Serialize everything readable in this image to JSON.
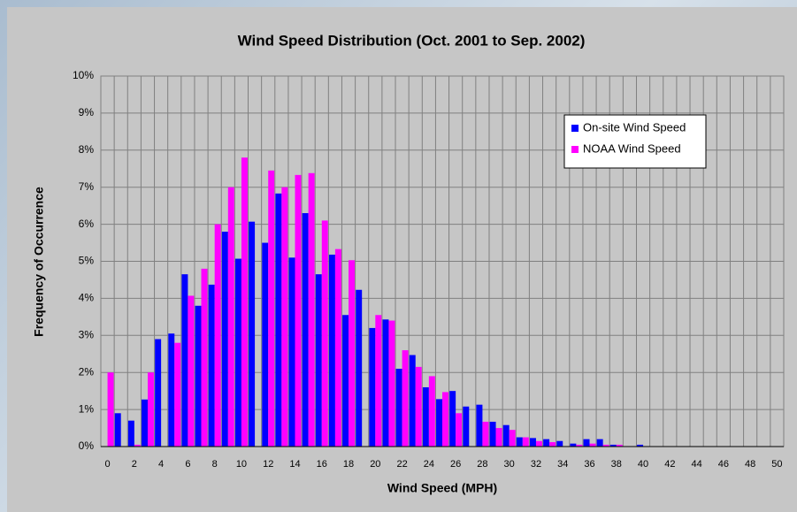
{
  "chart_data": {
    "type": "bar",
    "title": "Wind Speed Distribution (Oct. 2001 to Sep. 2002)",
    "x_label": "Wind Speed (MPH)",
    "y_label": "Frequency of Occurrence",
    "categories": [
      0,
      null,
      2,
      null,
      4,
      null,
      6,
      null,
      8,
      null,
      10,
      null,
      12,
      null,
      14,
      null,
      16,
      null,
      18,
      null,
      20,
      null,
      22,
      null,
      24,
      null,
      26,
      null,
      28,
      null,
      30,
      null,
      32,
      null,
      34,
      null,
      36,
      null,
      38,
      null,
      40,
      null,
      42,
      null,
      44,
      null,
      46,
      null,
      48,
      null,
      50
    ],
    "series": [
      {
        "name": "On-site Wind Speed",
        "color": "#0000ff",
        "values": [
          0,
          0.9,
          0.7,
          1.27,
          2.9,
          3.05,
          4.65,
          3.8,
          4.37,
          5.8,
          5.07,
          6.07,
          5.5,
          6.83,
          5.1,
          6.3,
          4.65,
          5.18,
          3.55,
          4.23,
          3.2,
          3.43,
          2.1,
          2.47,
          1.6,
          1.28,
          1.5,
          1.08,
          1.13,
          0.67,
          0.58,
          0.25,
          0.23,
          0.2,
          0.15,
          0.08,
          0.2,
          0.2,
          0.05,
          0,
          0.05,
          0,
          0,
          0,
          0,
          0,
          0,
          0,
          0,
          0,
          0
        ]
      },
      {
        "name": "NOAA Wind Speed",
        "color": "#ff00ff",
        "values": [
          2.0,
          0,
          0.05,
          2.0,
          0,
          2.8,
          4.07,
          4.8,
          6.0,
          7.0,
          7.8,
          0,
          7.45,
          7.0,
          7.33,
          7.38,
          6.1,
          5.33,
          5.03,
          0,
          3.55,
          3.4,
          2.6,
          2.15,
          1.9,
          1.47,
          0.9,
          0,
          0.67,
          0.5,
          0.45,
          0.25,
          0.15,
          0.12,
          0,
          0.05,
          0.08,
          0.05,
          0.05,
          0,
          0,
          0,
          0,
          0,
          0,
          0,
          0,
          0,
          0,
          0,
          0
        ]
      }
    ],
    "ylim": [
      0,
      10
    ],
    "yticks": [
      {
        "value": 0,
        "label": "0%"
      },
      {
        "value": 1,
        "label": "1%"
      },
      {
        "value": 2,
        "label": "2%"
      },
      {
        "value": 3,
        "label": "3%"
      },
      {
        "value": 4,
        "label": "4%"
      },
      {
        "value": 5,
        "label": "5%"
      },
      {
        "value": 6,
        "label": "6%"
      },
      {
        "value": 7,
        "label": "7%"
      },
      {
        "value": 8,
        "label": "8%"
      },
      {
        "value": 9,
        "label": "9%"
      },
      {
        "value": 10,
        "label": "10%"
      }
    ],
    "grid": true,
    "legend": "upper right"
  }
}
